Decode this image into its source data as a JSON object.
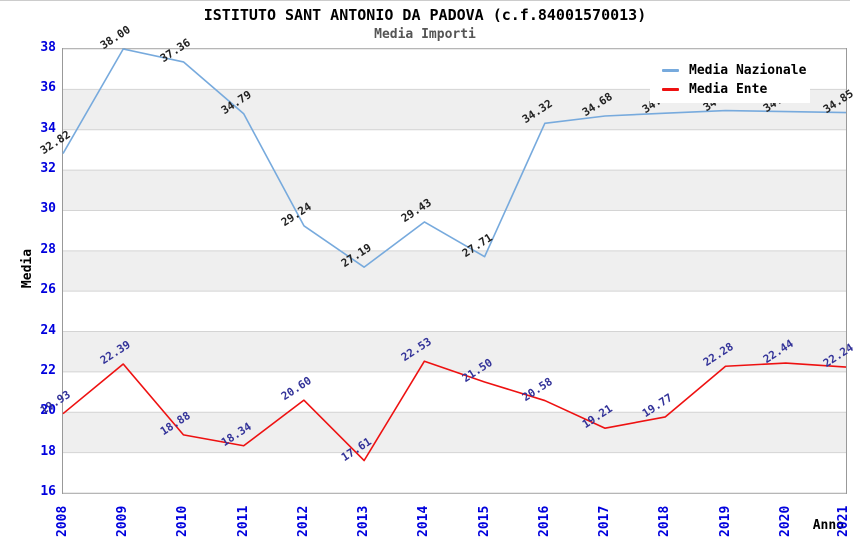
{
  "title": "ISTITUTO SANT ANTONIO DA PADOVA (c.f.84001570013)",
  "subtitle": "Media Importi",
  "legend": {
    "items": [
      {
        "label": "Media Nazionale",
        "color": "#77aadd"
      },
      {
        "label": "Media Ente",
        "color": "#ee1111"
      }
    ]
  },
  "chart_data": {
    "type": "line",
    "title": "ISTITUTO SANT ANTONIO DA PADOVA (c.f.84001570013)",
    "subtitle": "Media Importi",
    "xlabel": "Anno",
    "ylabel": "Media",
    "x": [
      2008,
      2009,
      2010,
      2011,
      2012,
      2013,
      2014,
      2015,
      2016,
      2017,
      2018,
      2019,
      2020,
      2021
    ],
    "series": [
      {
        "name": "Media Nazionale",
        "color": "#77aadd",
        "label_color": "#222222",
        "values": [
          32.82,
          38.0,
          37.36,
          34.79,
          29.24,
          27.19,
          29.43,
          27.71,
          34.32,
          34.68,
          34.82,
          34.95,
          34.9,
          34.85
        ]
      },
      {
        "name": "Media Ente",
        "color": "#ee1111",
        "label_color": "#333399",
        "values": [
          19.93,
          22.39,
          18.88,
          18.34,
          20.6,
          17.61,
          22.53,
          21.5,
          20.58,
          19.21,
          19.77,
          22.28,
          22.44,
          22.24
        ]
      }
    ],
    "ylim": [
      16,
      38
    ],
    "ytick_step": 2,
    "grid": true,
    "legend_position": "top-right",
    "colors": {
      "tick_label": "#0000dd",
      "band_fill": "#efefef",
      "grid_line": "#d4d4d4",
      "plot_border": "#999999",
      "background": "#ffffff"
    }
  }
}
